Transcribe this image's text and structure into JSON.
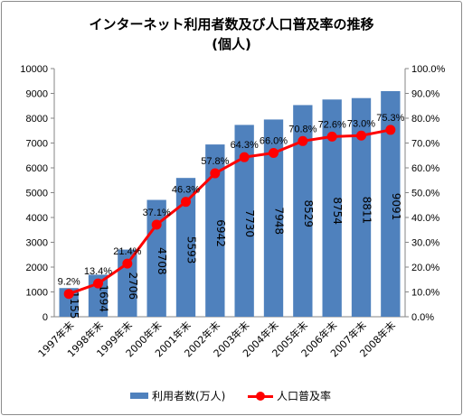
{
  "chart_data": {
    "type": "bar",
    "title": "インターネット利用者数及び人口普及率の推移",
    "subtitle": "(個人)",
    "categories": [
      "1997年末",
      "1998年末",
      "1999年末",
      "2000年末",
      "2001年末",
      "2002年末",
      "2003年末",
      "2004年末",
      "2005年末",
      "2006年末",
      "2007年末",
      "2008年末"
    ],
    "series": [
      {
        "name": "利用者数(万人)",
        "type": "bar",
        "axis": "left",
        "color": "#4f81bd",
        "values": [
          1155,
          1694,
          2706,
          4708,
          5593,
          6942,
          7730,
          7948,
          8529,
          8754,
          8811,
          9091
        ]
      },
      {
        "name": "人口普及率",
        "type": "line",
        "axis": "right",
        "color": "#ff0000",
        "values": [
          9.2,
          13.4,
          21.4,
          37.1,
          46.3,
          57.8,
          64.3,
          66.0,
          70.8,
          72.6,
          73.0,
          75.3
        ]
      }
    ],
    "value_labels": [
      "1155",
      "1694",
      "2706",
      "4708",
      "5593",
      "6942",
      "7730",
      "7948",
      "8529",
      "8754",
      "8811",
      "9091"
    ],
    "rate_labels": [
      "9.2%",
      "13.4%",
      "21.4%",
      "37.1%",
      "46.3%",
      "57.8%",
      "64.3%",
      "66.0%",
      "70.8%",
      "72.6%",
      "73.0%",
      "75.3%"
    ],
    "left_axis": {
      "ylim": [
        0,
        10000
      ],
      "ticks": [
        "0",
        "1000",
        "2000",
        "3000",
        "4000",
        "5000",
        "6000",
        "7000",
        "8000",
        "9000",
        "10000"
      ]
    },
    "right_axis": {
      "ylim": [
        0,
        100
      ],
      "ticks": [
        "0.0%",
        "10.0%",
        "20.0%",
        "30.0%",
        "40.0%",
        "50.0%",
        "60.0%",
        "70.0%",
        "80.0%",
        "90.0%",
        "100.0%"
      ]
    },
    "grid": false,
    "legend_position": "bottom"
  }
}
